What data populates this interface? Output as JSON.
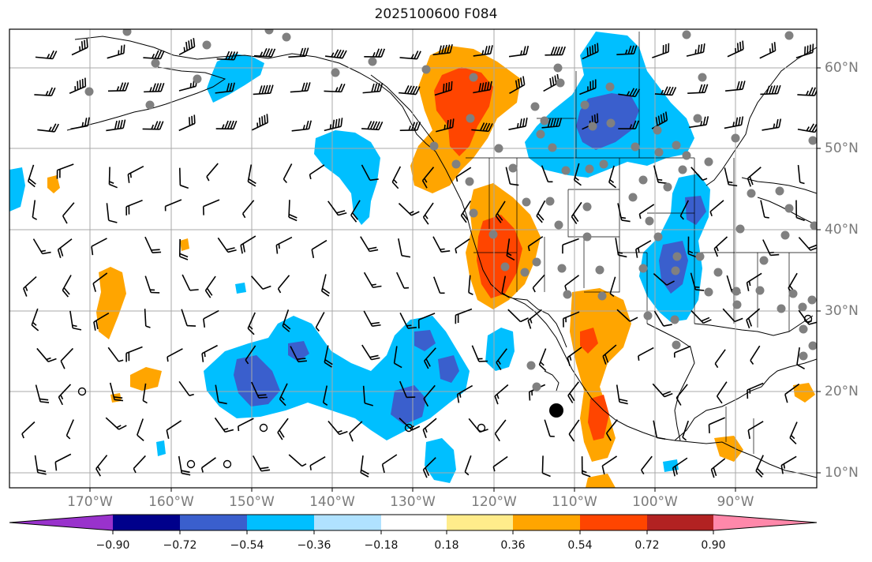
{
  "title": "2025100600 F084",
  "latitude_labels": [
    "60°N",
    "50°N",
    "40°N",
    "30°N",
    "20°N",
    "10°N"
  ],
  "longitude_labels": [
    "170°W",
    "160°W",
    "150°W",
    "140°W",
    "130°W",
    "120°W",
    "110°W",
    "100°W",
    "90°W"
  ],
  "colorbar": {
    "ticks": [
      "−0.90",
      "−0.72",
      "−0.54",
      "−0.36",
      "−0.18",
      "0.18",
      "0.36",
      "0.54",
      "0.72",
      "0.90"
    ],
    "colors": [
      "#9932cc",
      "#00008b",
      "#3a5fcd",
      "#00bfff",
      "#b0e2ff",
      "#ffffff",
      "#ffec8b",
      "#ffa500",
      "#ff4500",
      "#b22222",
      "#ff88aa"
    ]
  },
  "legend_colors": {
    "negative_light": "#00bfff",
    "negative_mid": "#3a5fcd",
    "positive_light": "#ffa500",
    "positive_mid": "#ff4500"
  }
}
